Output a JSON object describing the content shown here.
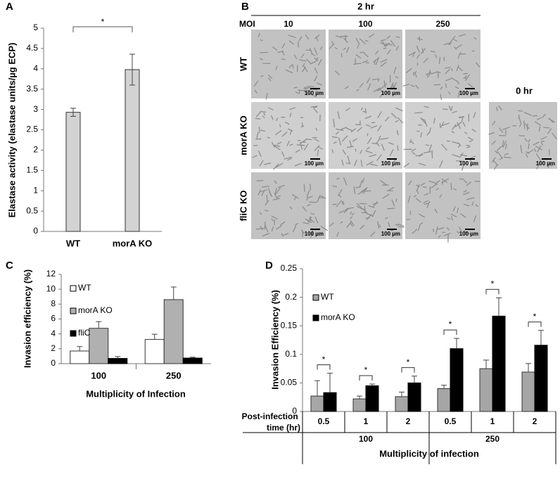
{
  "chart_data": [
    {
      "type": "bar",
      "panel": "A",
      "categories": [
        "WT",
        "morA KO"
      ],
      "values": [
        2.93,
        3.98
      ],
      "errors": [
        0.1,
        0.38
      ],
      "error_style": "both",
      "color": "#d3d3d3",
      "ylabel": "Elastase activity (elastase units/µg ECP)",
      "ylim": [
        0,
        5
      ],
      "yticks": [
        0,
        0.5,
        1,
        1.5,
        2,
        2.5,
        3,
        3.5,
        4,
        4.5,
        5
      ],
      "annotations": [
        "*"
      ]
    },
    {
      "type": "bar",
      "panel": "C",
      "categories": [
        "100",
        "250"
      ],
      "series": [
        {
          "name": "WT",
          "color": "#ffffff",
          "values": [
            1.7,
            3.25
          ],
          "errors": [
            0.6,
            0.7
          ]
        },
        {
          "name": "morA KO",
          "color": "#b0b0b0",
          "values": [
            4.75,
            8.6
          ],
          "errors": [
            0.9,
            1.7
          ]
        },
        {
          "name": "fliC",
          "color": "#000000",
          "values": [
            0.7,
            0.75
          ],
          "errors": [
            0.25,
            0.12
          ]
        }
      ],
      "error_style": "upper",
      "xlabel": "Multiplicity of Infection",
      "ylabel": "Invasion efficiency (%)",
      "ylim": [
        0,
        12
      ],
      "yticks": [
        0,
        2,
        4,
        6,
        8,
        10,
        12
      ]
    },
    {
      "type": "bar",
      "panel": "D",
      "categories": [
        "0.5",
        "1",
        "2",
        "0.5",
        "1",
        "2"
      ],
      "groups": [
        "100",
        "250"
      ],
      "row_label": "Post-infection time (hr)",
      "series": [
        {
          "name": "WT",
          "color": "#a6a6a6",
          "values": [
            0.027,
            0.022,
            0.026,
            0.04,
            0.075,
            0.069
          ],
          "errors": [
            0.027,
            0.005,
            0.008,
            0.006,
            0.015,
            0.015
          ]
        },
        {
          "name": "morA KO",
          "color": "#000000",
          "values": [
            0.033,
            0.045,
            0.05,
            0.11,
            0.167,
            0.116
          ],
          "errors": [
            0.034,
            0.003,
            0.012,
            0.018,
            0.032,
            0.026
          ]
        }
      ],
      "error_style": "upper",
      "xlabel": "Multiplicity of infection",
      "ylabel": "Invasion Efficiency (%)",
      "ylim": [
        0,
        0.25
      ],
      "yticks": [
        0,
        0.05,
        0.1,
        0.15,
        0.2,
        0.25
      ],
      "annotations": [
        "*",
        "*",
        "*",
        "*",
        "*",
        "*"
      ]
    }
  ],
  "micrographs": {
    "panel": "B",
    "time": "2 hr",
    "moi_label": "MOI",
    "columns": [
      "10",
      "100",
      "250"
    ],
    "rows": [
      "WT",
      "morA KO",
      "fliC KO"
    ],
    "control_label": "0 hr",
    "scale_label": "100 µm"
  }
}
